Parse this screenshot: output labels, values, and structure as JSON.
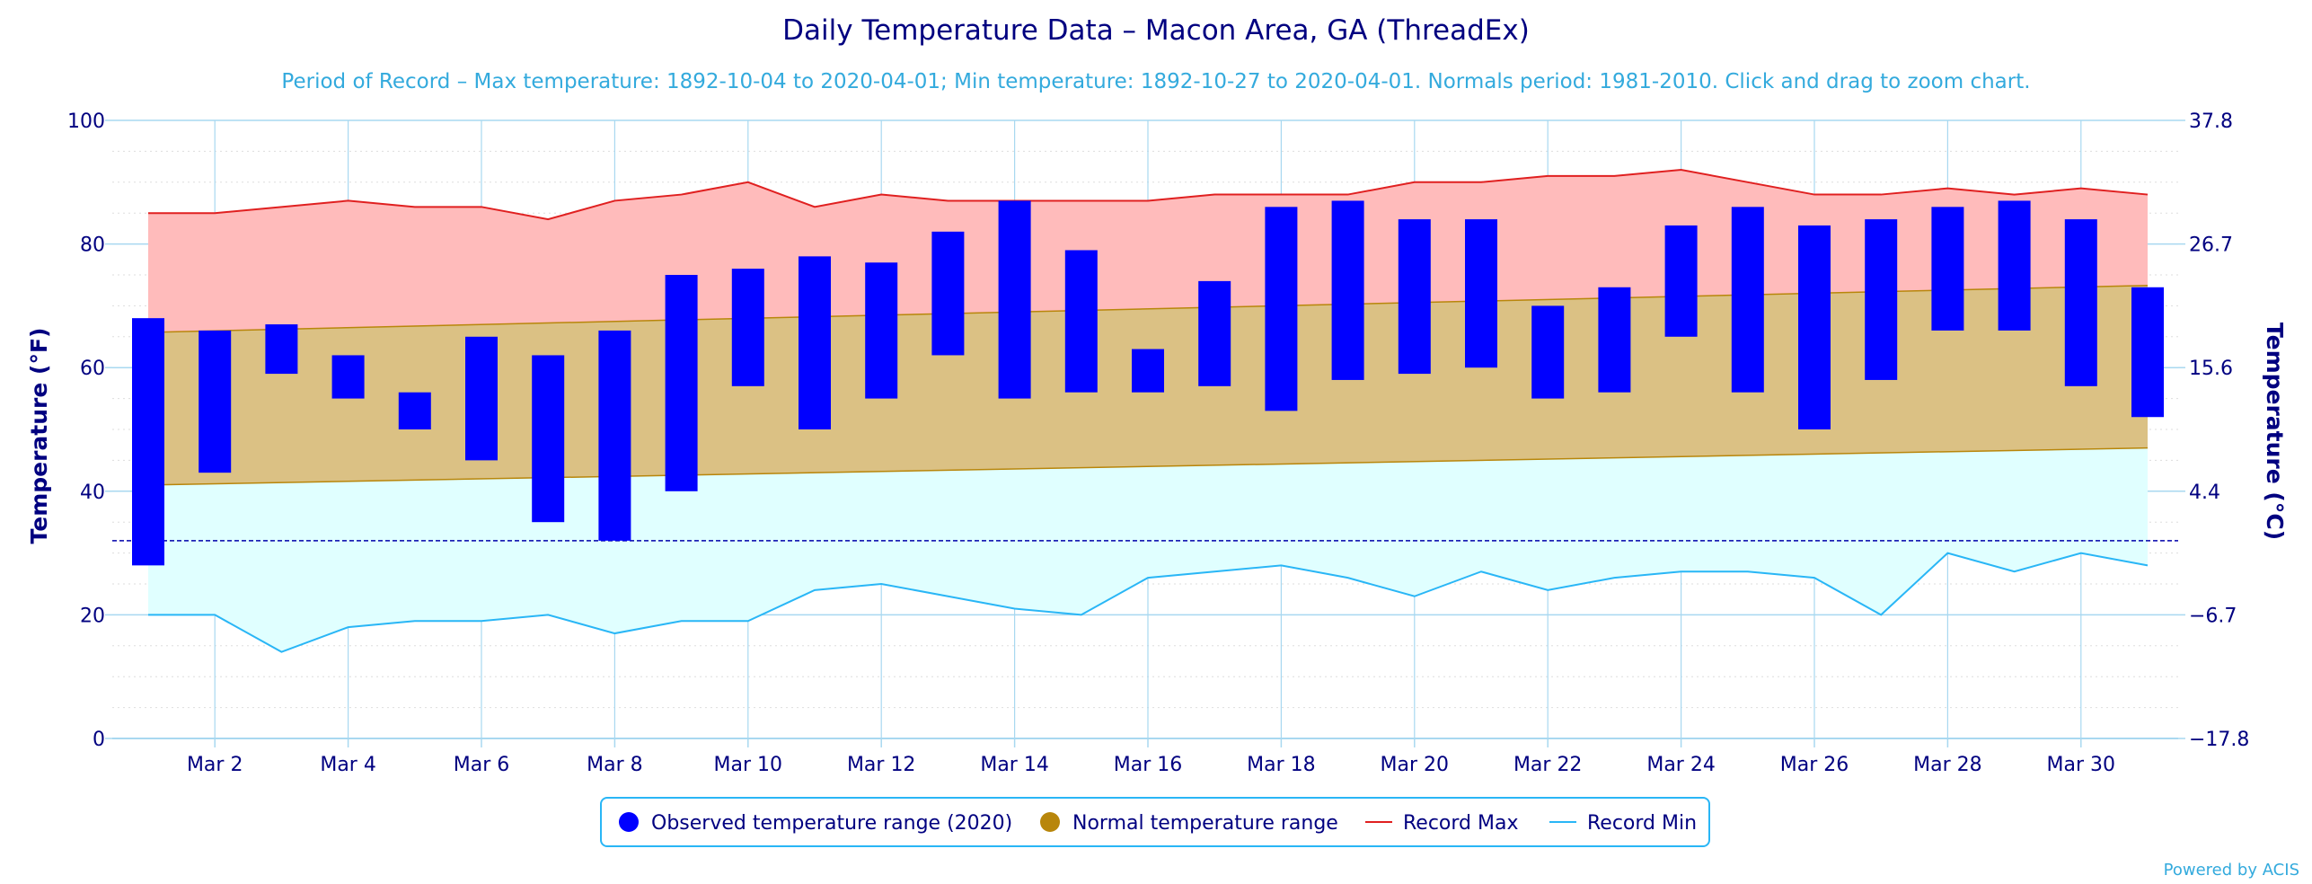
{
  "colors": {
    "observed": "#0000ff",
    "normal_fill": "#dbc184",
    "normal_line": "#b8860b",
    "record_max_fill": "#ffbbbb",
    "record_max_line": "#e02020",
    "record_min_fill": "#e0ffff",
    "record_min_line": "#29b6f6",
    "grid": "#a8d8f0",
    "freeze_line": "#0000aa",
    "text": "#000080"
  },
  "chart_data": {
    "type": "bar",
    "title": "Daily Temperature Data – Macon Area, GA (ThreadEx)",
    "subtitle": "Period of Record – Max temperature: 1892-10-04 to 2020-04-01; Min temperature: 1892-10-27 to 2020-04-01. Normals period: 1981-2010. Click and drag to zoom chart.",
    "ylabel": "Temperature (°F)",
    "ylabel_right": "Temperature (°C)",
    "ylim": [
      0,
      100
    ],
    "y_ticks": [
      0,
      20,
      40,
      60,
      80,
      100
    ],
    "y_ticks_right": [
      "−17.8",
      "−6.7",
      "4.4",
      "15.6",
      "26.7",
      "37.8"
    ],
    "x_tick_labels": [
      "Mar 2",
      "Mar 4",
      "Mar 6",
      "Mar 8",
      "Mar 10",
      "Mar 12",
      "Mar 14",
      "Mar 16",
      "Mar 18",
      "Mar 20",
      "Mar 22",
      "Mar 24",
      "Mar 26",
      "Mar 28",
      "Mar 30"
    ],
    "x_tick_days": [
      2,
      4,
      6,
      8,
      10,
      12,
      14,
      16,
      18,
      20,
      22,
      24,
      26,
      28,
      30
    ],
    "days": [
      1,
      2,
      3,
      4,
      5,
      6,
      7,
      8,
      9,
      10,
      11,
      12,
      13,
      14,
      15,
      16,
      17,
      18,
      19,
      20,
      21,
      22,
      23,
      24,
      25,
      26,
      27,
      28,
      29,
      30,
      31
    ],
    "freezing_line": 32,
    "legend_placement": "bottom-center",
    "grid": true,
    "series": [
      {
        "name": "Observed temperature range (2020)",
        "kind": "range-bar",
        "low": [
          28,
          43,
          59,
          55,
          50,
          45,
          35,
          32,
          40,
          57,
          50,
          55,
          62,
          55,
          56,
          56,
          57,
          53,
          58,
          59,
          60,
          55,
          56,
          65,
          56,
          50,
          58,
          66,
          66,
          57,
          52
        ],
        "high": [
          68,
          66,
          67,
          62,
          56,
          65,
          62,
          66,
          75,
          76,
          78,
          77,
          82,
          87,
          79,
          63,
          74,
          86,
          87,
          84,
          84,
          70,
          73,
          83,
          86,
          83,
          84,
          86,
          87,
          84,
          73
        ]
      },
      {
        "name": "Normal temperature range",
        "kind": "range-area",
        "low_start": 41,
        "low_end": 47,
        "high_start": 65.7,
        "high_end": 73.3
      },
      {
        "name": "Record Max",
        "kind": "line",
        "values": [
          85,
          85,
          86,
          87,
          86,
          86,
          84,
          87,
          88,
          90,
          86,
          88,
          87,
          87,
          87,
          87,
          88,
          88,
          88,
          90,
          90,
          91,
          91,
          92,
          90,
          88,
          88,
          89,
          88,
          89,
          88
        ]
      },
      {
        "name": "Record Min",
        "kind": "line",
        "values": [
          20,
          20,
          14,
          18,
          19,
          19,
          20,
          17,
          19,
          19,
          24,
          25,
          23,
          21,
          20,
          26,
          27,
          28,
          26,
          23,
          27,
          24,
          26,
          27,
          27,
          26,
          20,
          30,
          27,
          30,
          28
        ]
      }
    ]
  },
  "legend": {
    "observed": "Observed temperature range (2020)",
    "normal": "Normal temperature range",
    "record_max": "Record Max",
    "record_min": "Record Min"
  },
  "credit": "Powered by ACIS"
}
